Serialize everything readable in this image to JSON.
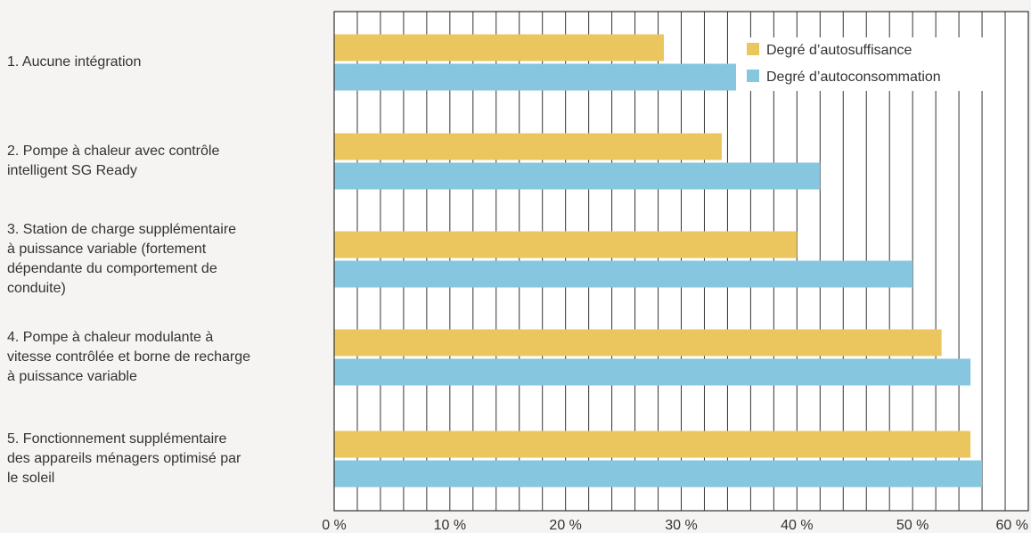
{
  "chart_data": {
    "type": "bar",
    "orientation": "horizontal",
    "categories": [
      "1. Aucune intégration",
      "2. Pompe à chaleur avec contrôle intelligent SG Ready",
      "3. Station de charge supplémentaire à puissance variable (fortement dépendante du comportement de conduite)",
      "4. Pompe à chaleur modulante à vitesse contrôlée et borne de recharge à puissance variable",
      "5. Fonctionnement supplémentaire des appareils ménagers optimisé par le soleil"
    ],
    "category_lines": [
      [
        "1. Aucune intégration"
      ],
      [
        "2. Pompe à chaleur avec contrôle",
        "intelligent SG Ready"
      ],
      [
        "3. Station de charge supplémentaire",
        "à puissance variable (fortement",
        "dépendante du comportement de",
        "conduite)"
      ],
      [
        "4. Pompe à chaleur modulante à",
        "vitesse contrôlée et borne de recharge",
        "à puissance variable"
      ],
      [
        "5. Fonctionnement supplémentaire",
        "des appareils ménagers optimisé par",
        "le soleil"
      ]
    ],
    "series": [
      {
        "name": "Degré d’autosuffisance",
        "color": "#ebc65f",
        "values": [
          28.5,
          33.5,
          40,
          52.5,
          55
        ]
      },
      {
        "name": "Degré d’autoconsommation",
        "color": "#86c6de",
        "values": [
          35,
          42,
          50,
          55,
          56
        ]
      }
    ],
    "xlim": [
      0,
      60
    ],
    "xticks": [
      0,
      10,
      20,
      30,
      40,
      50,
      60
    ],
    "xtick_labels": [
      "0 %",
      "10 %",
      "20 %",
      "30 %",
      "40 %",
      "50 %",
      "60 %"
    ],
    "minor_grid_step": 2,
    "grid": true,
    "legend_position": "top-right",
    "title": "",
    "xlabel": "",
    "ylabel": ""
  }
}
